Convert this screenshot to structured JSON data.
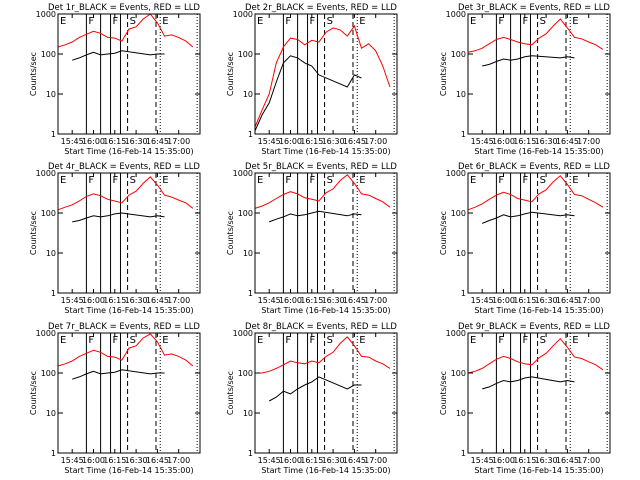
{
  "chart_data": [
    {
      "type": "line",
      "det": "1",
      "title": "Det 1r_BLACK = Events, RED = LLD",
      "xlabel": "Start Time (16-Feb-14 15:35:00)",
      "ylabel": "Counts/sec",
      "yscale": "log",
      "ylim": [
        1,
        1000
      ],
      "x_ticks": [
        "15:45",
        "16:00",
        "16:15",
        "16:30",
        "16:45",
        "17:00"
      ],
      "series": [
        {
          "color": "#ff0000",
          "x": [
            "15:35",
            "15:40",
            "15:45",
            "15:50",
            "15:55",
            "16:00",
            "16:05",
            "16:10",
            "16:15",
            "16:20",
            "16:25",
            "16:30",
            "16:35",
            "16:40",
            "16:45",
            "16:50",
            "16:55",
            "17:00",
            "17:05",
            "17:10"
          ],
          "y": [
            150,
            170,
            200,
            260,
            310,
            370,
            330,
            260,
            250,
            210,
            420,
            480,
            750,
            1000,
            600,
            280,
            300,
            260,
            210,
            150
          ]
        },
        {
          "color": "#000000",
          "x": [
            "15:45",
            "15:50",
            "15:55",
            "16:00",
            "16:05",
            "16:10",
            "16:15",
            "16:20",
            "16:40",
            "16:45",
            "16:50"
          ],
          "y": [
            70,
            80,
            95,
            110,
            95,
            100,
            105,
            120,
            95,
            100,
            100
          ]
        }
      ]
    },
    {
      "type": "line",
      "det": "2",
      "title": "Det 2r_BLACK = Events, RED = LLD",
      "xlabel": "Start Time (16-Feb-14 15:35:00)",
      "ylabel": "Counts/sec",
      "yscale": "log",
      "ylim": [
        1,
        1000
      ],
      "x_ticks": [
        "15:45",
        "16:00",
        "16:15",
        "16:30",
        "16:45",
        "17:00"
      ],
      "series": [
        {
          "color": "#ff0000",
          "x": [
            "15:35",
            "15:40",
            "15:45",
            "15:50",
            "15:55",
            "16:00",
            "16:05",
            "16:10",
            "16:15",
            "16:20",
            "16:25",
            "16:30",
            "16:35",
            "16:40",
            "16:45",
            "16:50",
            "16:55",
            "17:00",
            "17:05",
            "17:10"
          ],
          "y": [
            1.5,
            4,
            10,
            60,
            150,
            250,
            230,
            170,
            220,
            200,
            350,
            450,
            400,
            280,
            500,
            140,
            180,
            120,
            50,
            15
          ]
        },
        {
          "color": "#000000",
          "x": [
            "15:35",
            "15:40",
            "15:45",
            "15:50",
            "15:55",
            "16:00",
            "16:05",
            "16:10",
            "16:15",
            "16:20",
            "16:40",
            "16:45",
            "16:50"
          ],
          "y": [
            1.2,
            3,
            6,
            20,
            60,
            90,
            80,
            60,
            50,
            30,
            15,
            30,
            25
          ]
        }
      ]
    },
    {
      "type": "line",
      "det": "3",
      "title": "Det 3r_BLACK = Events, RED = LLD",
      "xlabel": "Start Time (16-Feb-14 15:35:00)",
      "ylabel": "Counts/sec",
      "yscale": "log",
      "ylim": [
        1,
        1000
      ],
      "x_ticks": [
        "15:45",
        "16:00",
        "16:15",
        "16:30",
        "16:45",
        "17:00"
      ],
      "series": [
        {
          "color": "#ff0000",
          "x": [
            "15:35",
            "15:40",
            "15:45",
            "15:50",
            "15:55",
            "16:00",
            "16:05",
            "16:10",
            "16:15",
            "16:20",
            "16:25",
            "16:30",
            "16:35",
            "16:40",
            "16:45",
            "16:50",
            "16:55",
            "17:00",
            "17:05",
            "17:10"
          ],
          "y": [
            110,
            120,
            140,
            180,
            230,
            260,
            230,
            200,
            180,
            170,
            250,
            320,
            500,
            750,
            450,
            260,
            240,
            200,
            170,
            130
          ]
        },
        {
          "color": "#000000",
          "x": [
            "15:45",
            "15:50",
            "15:55",
            "16:00",
            "16:05",
            "16:10",
            "16:15",
            "16:20",
            "16:40",
            "16:45",
            "16:50"
          ],
          "y": [
            50,
            55,
            65,
            75,
            70,
            75,
            85,
            90,
            80,
            85,
            80
          ]
        }
      ]
    },
    {
      "type": "line",
      "det": "4",
      "title": "Det 4r_BLACK = Events, RED = LLD",
      "xlabel": "Start Time (16-Feb-14 15:35:00)",
      "ylabel": "Counts/sec",
      "yscale": "log",
      "ylim": [
        1,
        1000
      ],
      "x_ticks": [
        "15:45",
        "16:00",
        "16:15",
        "16:30",
        "16:45",
        "17:00"
      ],
      "series": [
        {
          "color": "#ff0000",
          "x": [
            "15:35",
            "15:40",
            "15:45",
            "15:50",
            "15:55",
            "16:00",
            "16:05",
            "16:10",
            "16:15",
            "16:20",
            "16:25",
            "16:30",
            "16:35",
            "16:40",
            "16:45",
            "16:50",
            "16:55",
            "17:00",
            "17:05",
            "17:10"
          ],
          "y": [
            120,
            140,
            160,
            200,
            260,
            300,
            270,
            220,
            200,
            180,
            280,
            350,
            550,
            800,
            500,
            280,
            250,
            210,
            180,
            130
          ]
        },
        {
          "color": "#000000",
          "x": [
            "15:45",
            "15:50",
            "15:55",
            "16:00",
            "16:05",
            "16:10",
            "16:15",
            "16:20",
            "16:40",
            "16:45",
            "16:50"
          ],
          "y": [
            60,
            65,
            75,
            85,
            80,
            85,
            95,
            100,
            80,
            85,
            80
          ]
        }
      ]
    },
    {
      "type": "line",
      "det": "5",
      "title": "Det 5r_BLACK = Events, RED = LLD",
      "xlabel": "Start Time (16-Feb-14 15:35:00)",
      "ylabel": "Counts/sec",
      "yscale": "log",
      "ylim": [
        1,
        1000
      ],
      "x_ticks": [
        "15:45",
        "16:00",
        "16:15",
        "16:30",
        "16:45",
        "17:00"
      ],
      "series": [
        {
          "color": "#ff0000",
          "x": [
            "15:35",
            "15:40",
            "15:45",
            "15:50",
            "15:55",
            "16:00",
            "16:05",
            "16:10",
            "16:15",
            "16:20",
            "16:25",
            "16:30",
            "16:35",
            "16:40",
            "16:45",
            "16:50",
            "16:55",
            "17:00",
            "17:05",
            "17:10"
          ],
          "y": [
            130,
            150,
            180,
            230,
            290,
            340,
            300,
            240,
            220,
            200,
            320,
            400,
            650,
            900,
            550,
            300,
            280,
            230,
            190,
            140
          ]
        },
        {
          "color": "#000000",
          "x": [
            "15:45",
            "15:50",
            "15:55",
            "16:00",
            "16:05",
            "16:10",
            "16:15",
            "16:20",
            "16:40",
            "16:45",
            "16:50"
          ],
          "y": [
            60,
            70,
            80,
            95,
            85,
            90,
            100,
            110,
            85,
            95,
            90
          ]
        }
      ]
    },
    {
      "type": "line",
      "det": "6",
      "title": "Det 6r_BLACK = Events, RED = LLD",
      "xlabel": "Start Time (16-Feb-14 15:35:00)",
      "ylabel": "Counts/sec",
      "yscale": "log",
      "ylim": [
        1,
        1000
      ],
      "x_ticks": [
        "15:45",
        "16:00",
        "16:15",
        "16:30",
        "16:45",
        "17:00"
      ],
      "series": [
        {
          "color": "#ff0000",
          "x": [
            "15:35",
            "15:40",
            "15:45",
            "15:50",
            "15:55",
            "16:00",
            "16:05",
            "16:10",
            "16:15",
            "16:20",
            "16:25",
            "16:30",
            "16:35",
            "16:40",
            "16:45",
            "16:50",
            "16:55",
            "17:00",
            "17:05",
            "17:10"
          ],
          "y": [
            120,
            140,
            170,
            220,
            280,
            330,
            290,
            230,
            210,
            190,
            300,
            380,
            600,
            850,
            520,
            290,
            270,
            220,
            180,
            140
          ]
        },
        {
          "color": "#000000",
          "x": [
            "15:45",
            "15:50",
            "15:55",
            "16:00",
            "16:05",
            "16:10",
            "16:15",
            "16:20",
            "16:40",
            "16:45",
            "16:50"
          ],
          "y": [
            55,
            65,
            75,
            90,
            80,
            85,
            95,
            105,
            85,
            90,
            85
          ]
        }
      ]
    },
    {
      "type": "line",
      "det": "7",
      "title": "Det 7r_BLACK = Events, RED = LLD",
      "xlabel": "Start Time (16-Feb-14 15:35:00)",
      "ylabel": "Counts/sec",
      "yscale": "log",
      "ylim": [
        1,
        1000
      ],
      "x_ticks": [
        "15:45",
        "16:00",
        "16:15",
        "16:30",
        "16:45",
        "17:00"
      ],
      "series": [
        {
          "color": "#ff0000",
          "x": [
            "15:35",
            "15:40",
            "15:45",
            "15:50",
            "15:55",
            "16:00",
            "16:05",
            "16:10",
            "16:15",
            "16:20",
            "16:25",
            "16:30",
            "16:35",
            "16:40",
            "16:45",
            "16:50",
            "16:55",
            "17:00",
            "17:05",
            "17:10"
          ],
          "y": [
            150,
            170,
            200,
            260,
            310,
            370,
            330,
            260,
            250,
            210,
            420,
            480,
            750,
            950,
            600,
            280,
            300,
            260,
            210,
            150
          ]
        },
        {
          "color": "#000000",
          "x": [
            "15:45",
            "15:50",
            "15:55",
            "16:00",
            "16:05",
            "16:10",
            "16:15",
            "16:20",
            "16:40",
            "16:45",
            "16:50"
          ],
          "y": [
            70,
            80,
            95,
            110,
            95,
            100,
            105,
            120,
            95,
            100,
            100
          ]
        }
      ]
    },
    {
      "type": "line",
      "det": "8",
      "title": "Det 8r_BLACK = Events, RED = LLD",
      "xlabel": "Start Time (16-Feb-14 15:35:00)",
      "ylabel": "Counts/sec",
      "yscale": "log",
      "ylim": [
        1,
        1000
      ],
      "x_ticks": [
        "15:45",
        "16:00",
        "16:15",
        "16:30",
        "16:45",
        "17:00"
      ],
      "series": [
        {
          "color": "#ff0000",
          "x": [
            "15:35",
            "15:40",
            "15:45",
            "15:50",
            "15:55",
            "16:00",
            "16:05",
            "16:10",
            "16:15",
            "16:20",
            "16:25",
            "16:30",
            "16:35",
            "16:40",
            "16:45",
            "16:50",
            "16:55",
            "17:00",
            "17:05",
            "17:10"
          ],
          "y": [
            100,
            100,
            110,
            130,
            160,
            200,
            180,
            170,
            200,
            180,
            260,
            330,
            550,
            800,
            480,
            260,
            250,
            200,
            170,
            130
          ]
        },
        {
          "color": "#000000",
          "x": [
            "15:45",
            "15:50",
            "15:55",
            "16:00",
            "16:05",
            "16:10",
            "16:15",
            "16:20",
            "16:40",
            "16:45",
            "16:50"
          ],
          "y": [
            20,
            25,
            35,
            30,
            40,
            50,
            60,
            80,
            40,
            50,
            50
          ]
        }
      ]
    },
    {
      "type": "line",
      "det": "9",
      "title": "Det 9r_BLACK = Events, RED = LLD",
      "xlabel": "Start Time (16-Feb-14 15:35:00)",
      "ylabel": "Counts/sec",
      "yscale": "log",
      "ylim": [
        1,
        1000
      ],
      "x_ticks": [
        "15:45",
        "16:00",
        "16:15",
        "16:30",
        "16:45",
        "17:00"
      ],
      "series": [
        {
          "color": "#ff0000",
          "x": [
            "15:35",
            "15:40",
            "15:45",
            "15:50",
            "15:55",
            "16:00",
            "16:05",
            "16:10",
            "16:15",
            "16:20",
            "16:25",
            "16:30",
            "16:35",
            "16:40",
            "16:45",
            "16:50",
            "16:55",
            "17:00",
            "17:05",
            "17:10"
          ],
          "y": [
            100,
            110,
            130,
            170,
            220,
            260,
            230,
            190,
            170,
            160,
            240,
            310,
            480,
            720,
            440,
            250,
            230,
            190,
            160,
            120
          ]
        },
        {
          "color": "#000000",
          "x": [
            "15:45",
            "15:50",
            "15:55",
            "16:00",
            "16:05",
            "16:10",
            "16:15",
            "16:20",
            "16:40",
            "16:45",
            "16:50"
          ],
          "y": [
            40,
            45,
            55,
            65,
            60,
            65,
            75,
            80,
            60,
            65,
            60
          ]
        }
      ]
    }
  ],
  "y_tick_labels": [
    "1",
    "10",
    "100",
    "1000"
  ],
  "event_markers": [
    {
      "time": "15:35",
      "style": "solid",
      "label": "E"
    },
    {
      "time": "15:55",
      "style": "solid",
      "label": "F"
    },
    {
      "time": "16:05",
      "style": "solid",
      "label": ""
    },
    {
      "time": "16:12",
      "style": "solid",
      "label": "F"
    },
    {
      "time": "16:19",
      "style": "solid",
      "label": ""
    },
    {
      "time": "16:24",
      "style": "dashed",
      "label": "S"
    },
    {
      "time": "16:44",
      "style": "dashed",
      "label": ""
    },
    {
      "time": "16:47",
      "style": "dotted",
      "label": "E"
    },
    {
      "time": "17:13",
      "style": "dotted",
      "label": ""
    }
  ]
}
